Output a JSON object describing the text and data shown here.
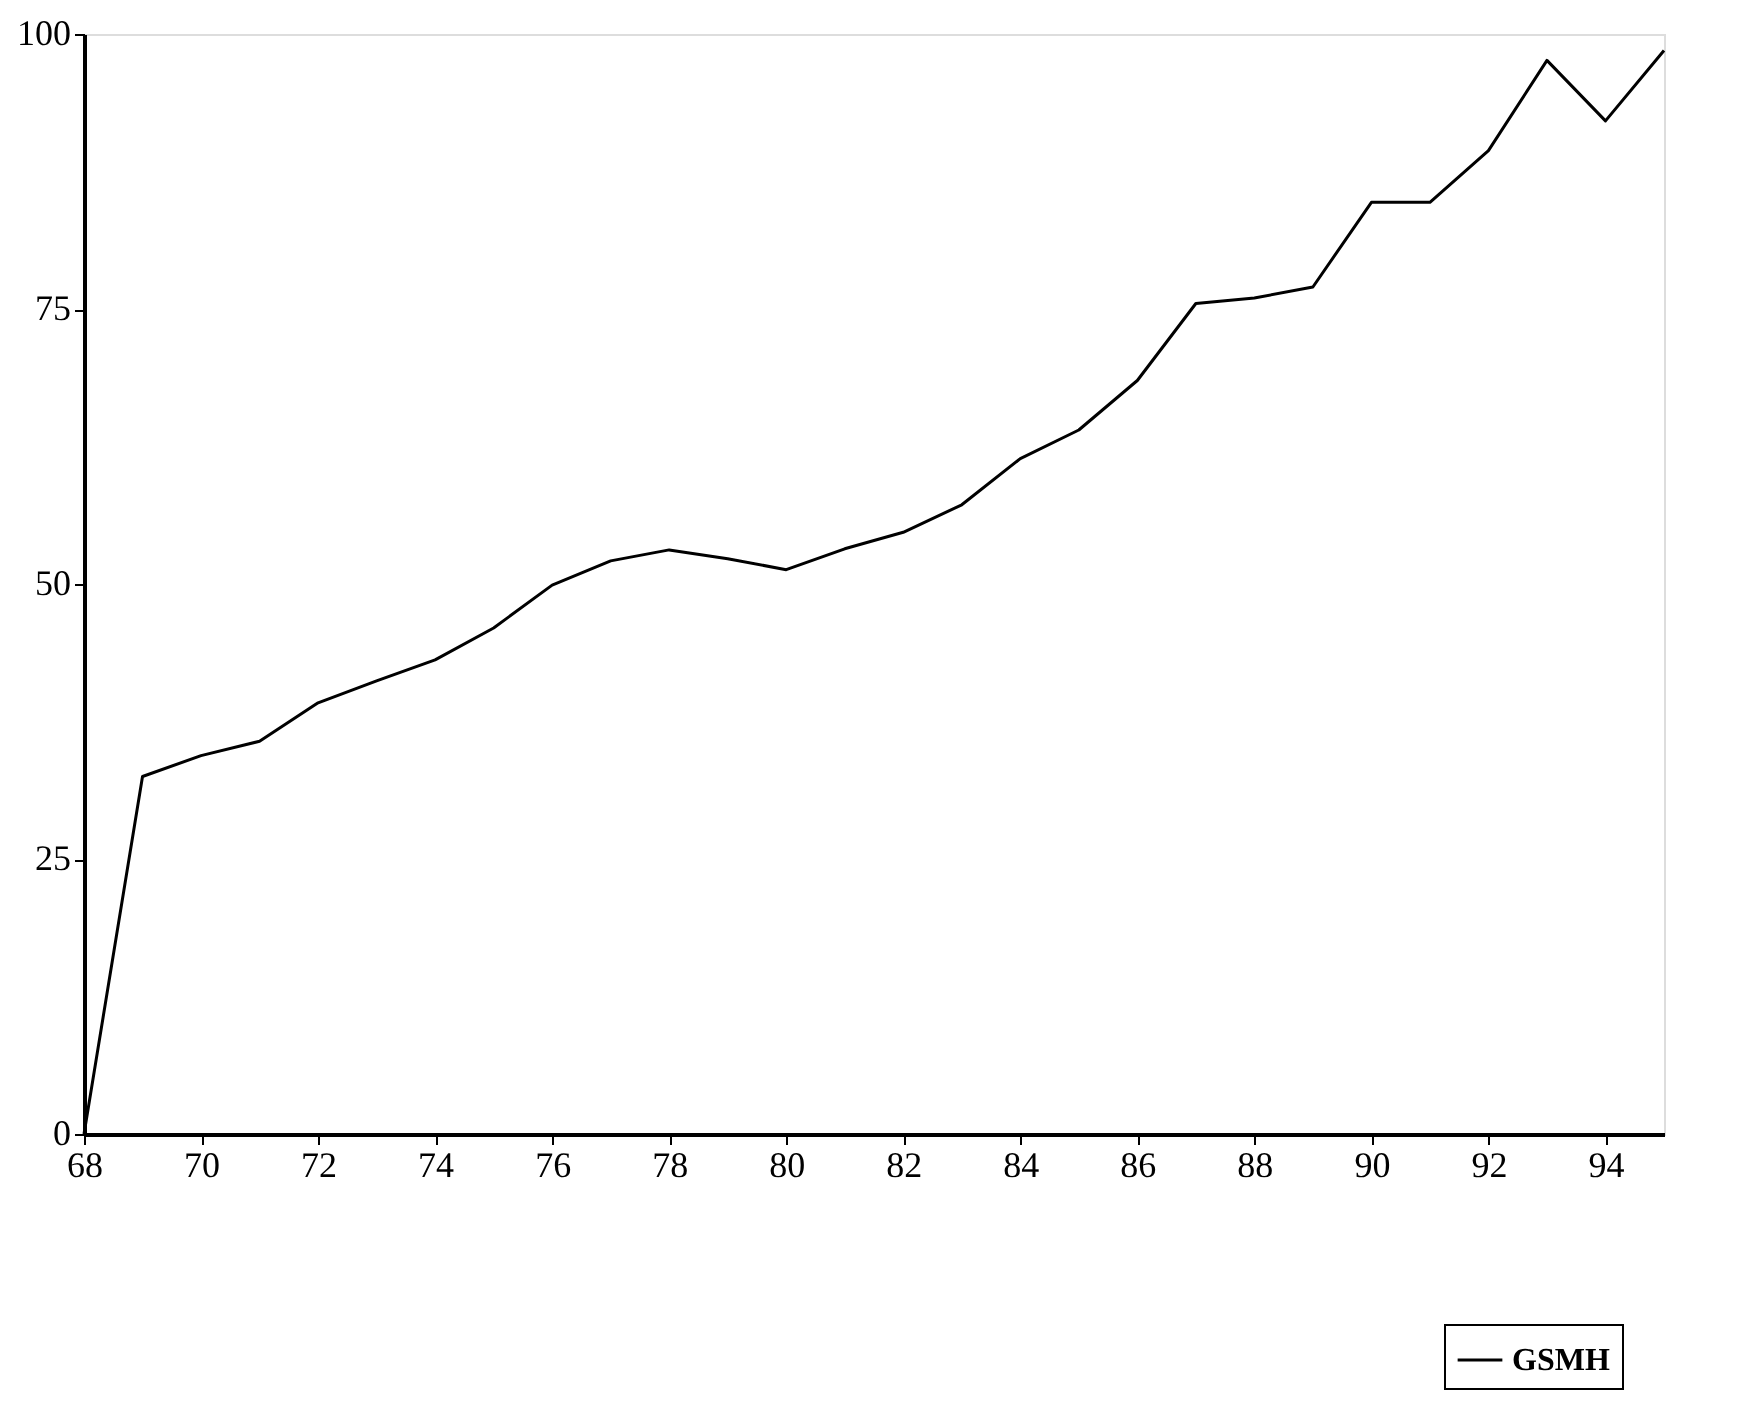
{
  "chart_data": {
    "type": "line",
    "x": [
      68,
      69,
      70,
      71,
      72,
      73,
      74,
      75,
      76,
      77,
      78,
      79,
      80,
      81,
      82,
      83,
      84,
      85,
      86,
      87,
      88,
      89,
      90,
      91,
      92,
      93,
      94,
      95
    ],
    "series": [
      {
        "name": "GSMH",
        "color": "#000000",
        "values": [
          0,
          32.5,
          34.4,
          35.7,
          39.2,
          41.2,
          43.1,
          46,
          49.9,
          52.1,
          53.1,
          52.3,
          51.3,
          53.2,
          54.7,
          57.2,
          61.4,
          64,
          68.5,
          75.5,
          76,
          77,
          84.7,
          84.7,
          89.4,
          97.6,
          92.1,
          98.5
        ]
      }
    ],
    "xlim": [
      68,
      95
    ],
    "xticks": [
      68,
      70,
      72,
      74,
      76,
      78,
      80,
      82,
      84,
      86,
      88,
      90,
      92,
      94
    ],
    "ylim": [
      0,
      100
    ],
    "yticks": [
      0,
      25,
      50,
      75,
      100
    ],
    "grid": false,
    "legend": "bottom right",
    "line_style": "solid"
  }
}
